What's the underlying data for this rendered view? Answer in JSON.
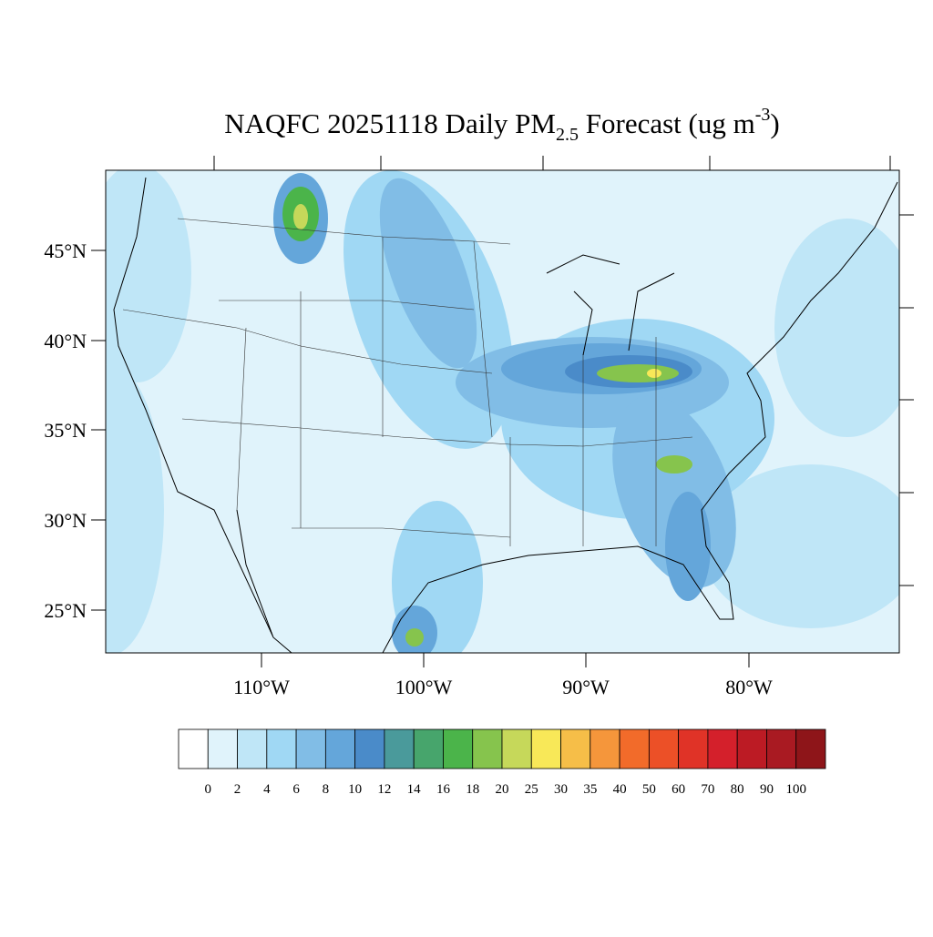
{
  "title": {
    "main": "NAQFC 20251118 Daily PM",
    "subscript": "2.5",
    "middle": " Forecast (ug m",
    "superscript": "-3",
    "end": ")"
  },
  "map": {
    "lat_labels": [
      "45°N",
      "40°N",
      "35°N",
      "30°N",
      "25°N"
    ],
    "lon_labels": [
      "110°W",
      "100°W",
      "90°W",
      "80°W"
    ]
  },
  "colorbar": {
    "levels": [
      0,
      2,
      4,
      6,
      8,
      10,
      12,
      14,
      16,
      18,
      20,
      25,
      30,
      35,
      40,
      50,
      60,
      70,
      80,
      90,
      100
    ],
    "colors": [
      "#ffffff",
      "#e0f3fb",
      "#bfe6f7",
      "#a0d8f4",
      "#81bde6",
      "#64a6da",
      "#4a8bc9",
      "#4a9a9b",
      "#47a56c",
      "#4bb44a",
      "#86c44d",
      "#c6d85a",
      "#f8e858",
      "#f6be48",
      "#f5963b",
      "#f26b2a",
      "#ec5027",
      "#e03327",
      "#d4202b",
      "#bc1b24",
      "#a91a22",
      "#8e1519"
    ]
  }
}
